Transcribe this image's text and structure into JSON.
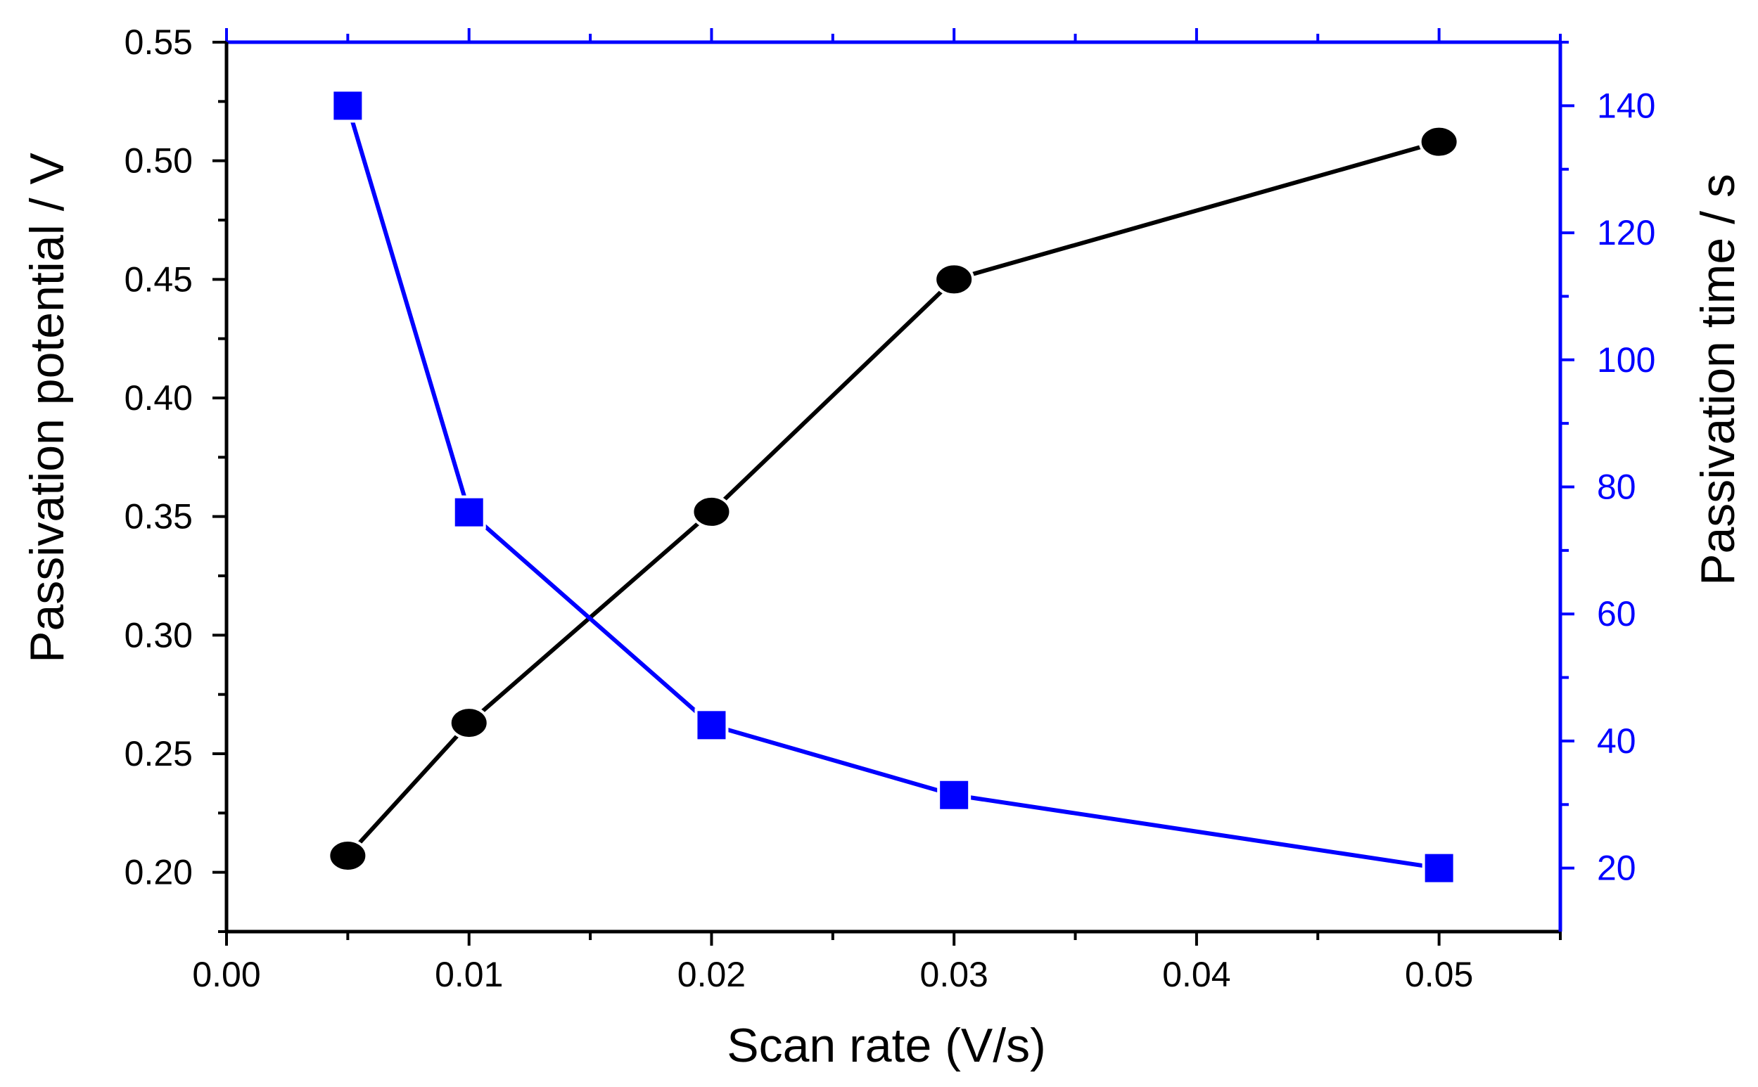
{
  "chart_data": {
    "type": "line",
    "xlabel": "Scan rate (V/s)",
    "xlim": [
      0.0,
      0.055
    ],
    "x_ticks": [
      "0.00",
      "0.01",
      "0.02",
      "0.03",
      "0.04",
      "0.05"
    ],
    "x_tick_values": [
      0.0,
      0.01,
      0.02,
      0.03,
      0.04,
      0.05
    ],
    "y_left": {
      "label": "Passivation potential / V",
      "lim": [
        0.175,
        0.55
      ],
      "ticks": [
        "0.20",
        "0.25",
        "0.30",
        "0.35",
        "0.40",
        "0.45",
        "0.50",
        "0.55"
      ],
      "tick_values": [
        0.2,
        0.25,
        0.3,
        0.35,
        0.4,
        0.45,
        0.5,
        0.55
      ],
      "color": "#000000"
    },
    "y_right": {
      "label": "Passivation time / s",
      "lim": [
        10,
        150
      ],
      "ticks": [
        "20",
        "40",
        "60",
        "80",
        "100",
        "120",
        "140"
      ],
      "tick_values": [
        20,
        40,
        60,
        80,
        100,
        120,
        140
      ],
      "color": "#0000ff"
    },
    "series": [
      {
        "axis": "left",
        "marker": "circle",
        "color": "#000000",
        "x": [
          0.005,
          0.01,
          0.02,
          0.03,
          0.05
        ],
        "y": [
          0.207,
          0.263,
          0.352,
          0.45,
          0.508
        ]
      },
      {
        "axis": "right",
        "marker": "square",
        "color": "#0000ff",
        "x": [
          0.005,
          0.01,
          0.02,
          0.03,
          0.05
        ],
        "y": [
          140,
          76,
          42.5,
          31.5,
          20
        ]
      }
    ],
    "grid": false
  }
}
